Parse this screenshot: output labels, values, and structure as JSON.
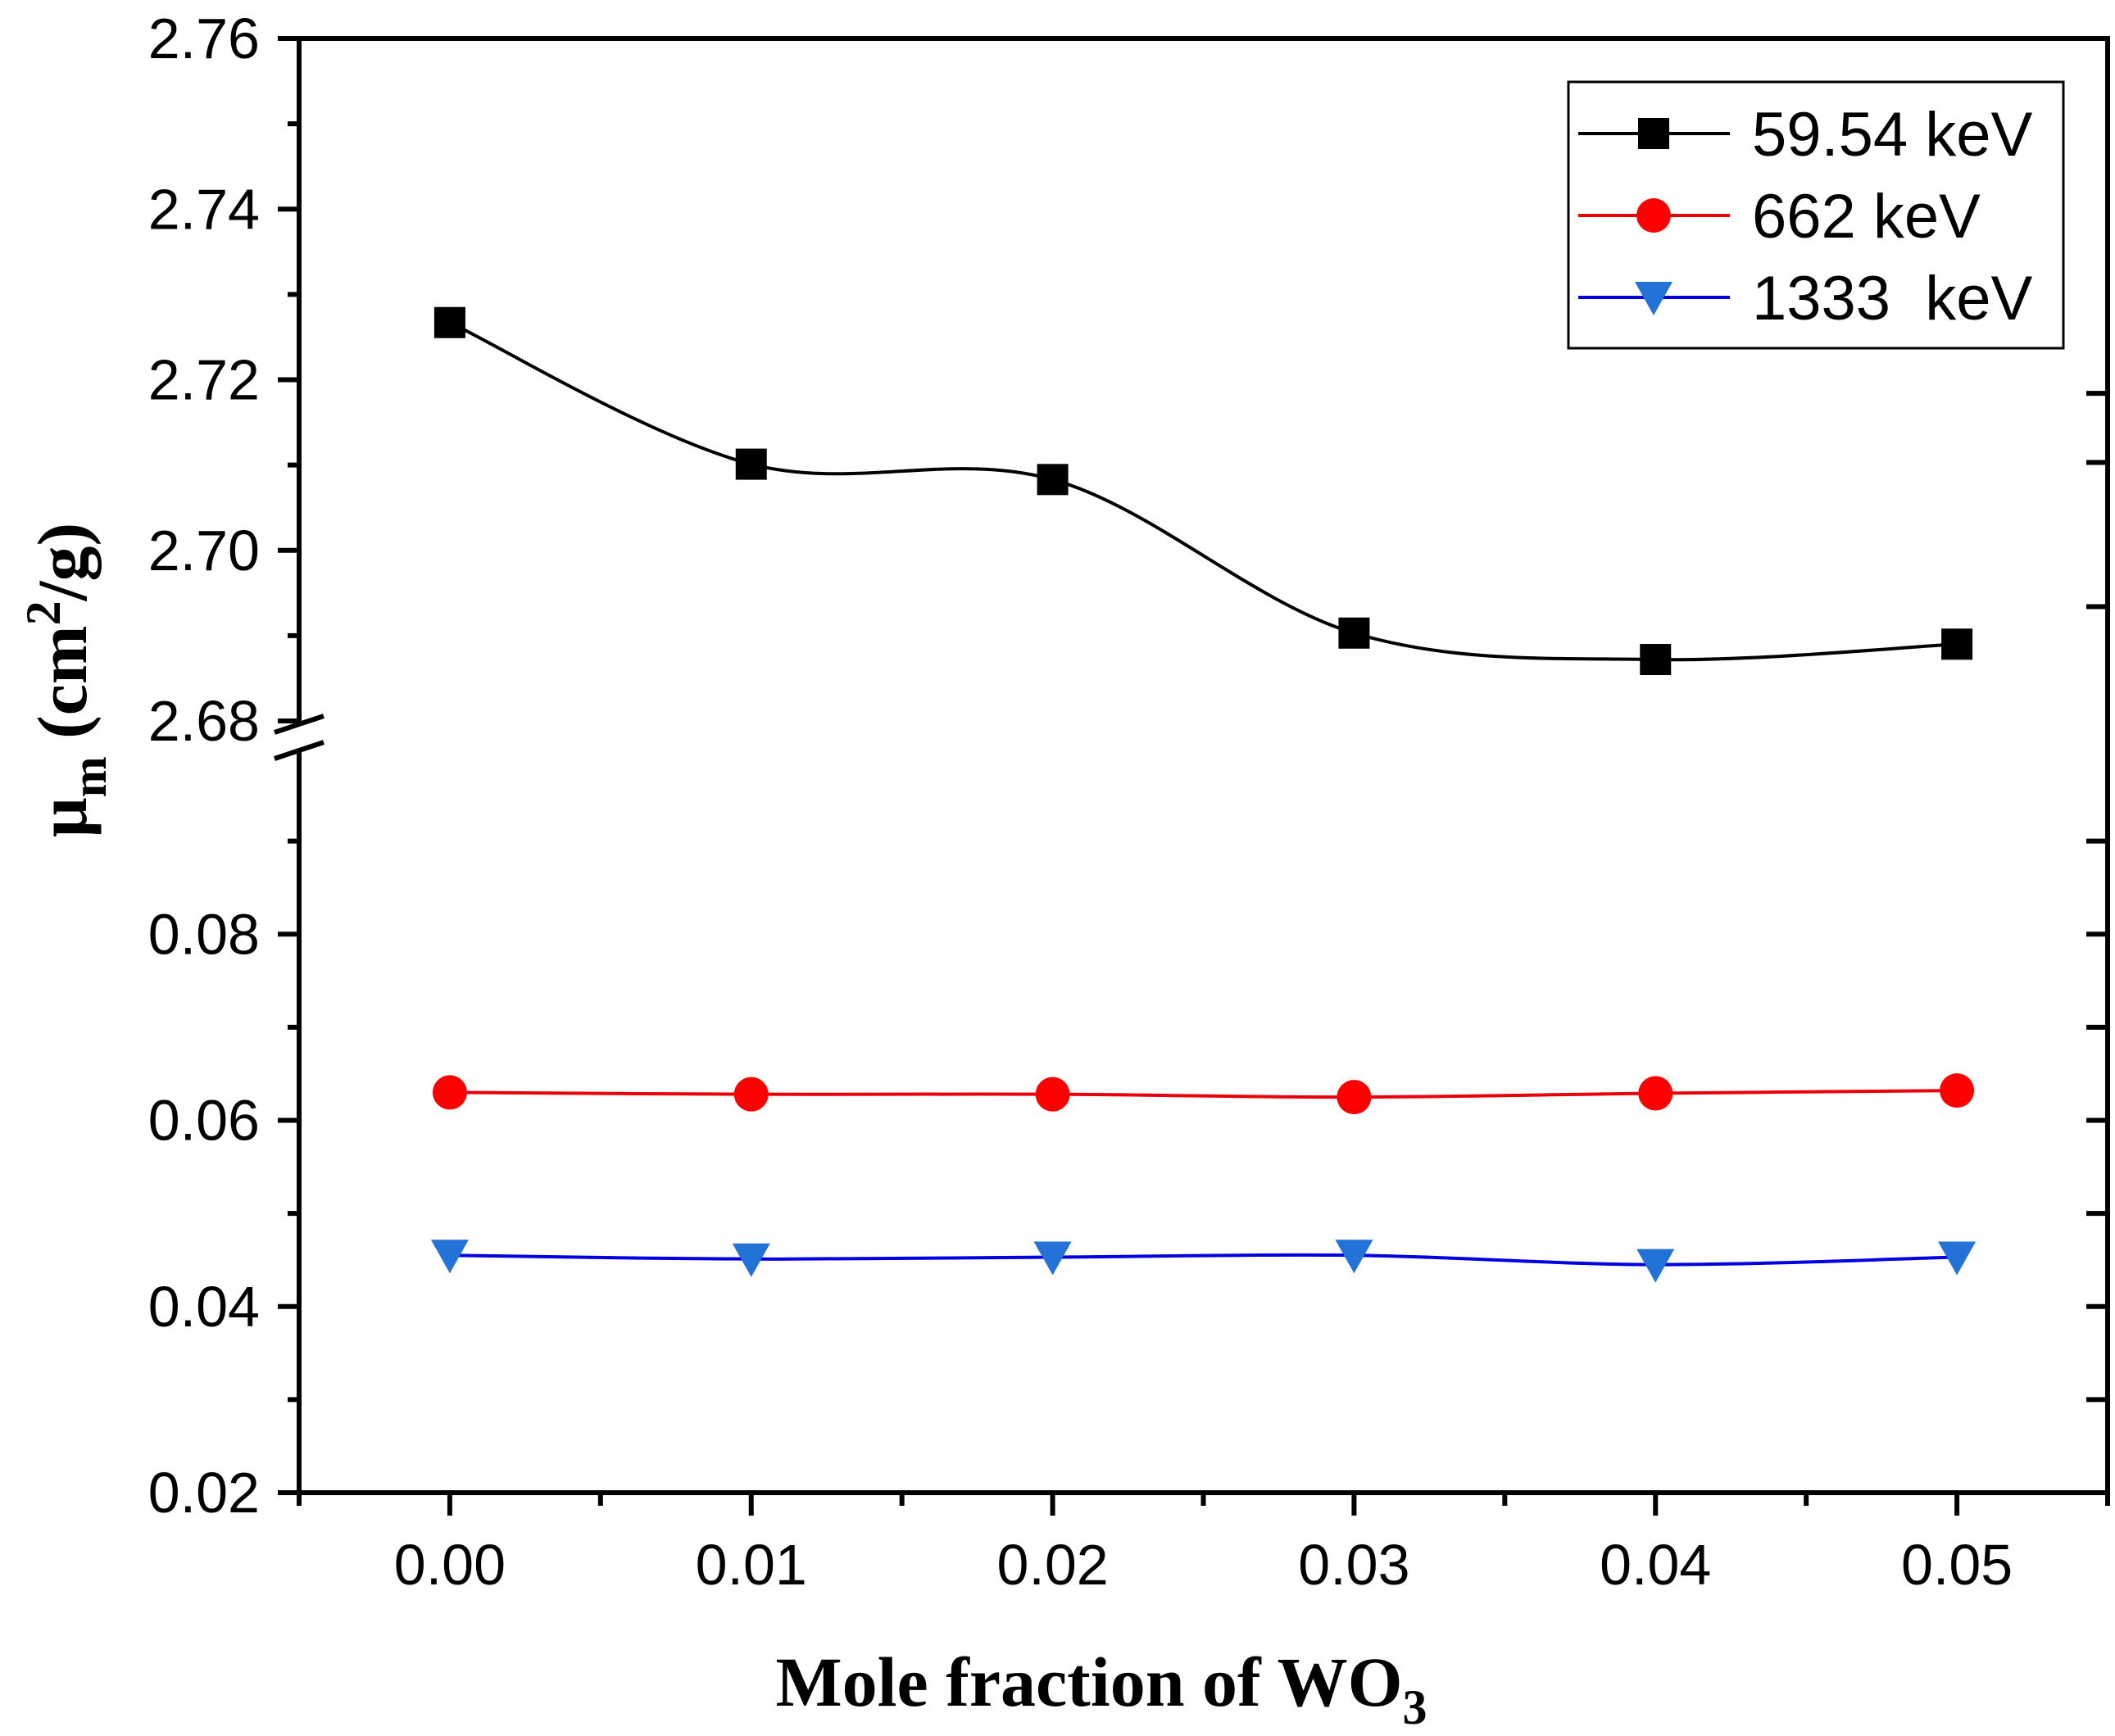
{
  "chart_data": {
    "type": "line",
    "xlabel": "Mole fraction of WO",
    "xlabel_sub": "3",
    "ylabel_mu": "μ",
    "ylabel_mu_sub": "m",
    "ylabel_open": " (cm",
    "ylabel_sup": "2",
    "ylabel_close": "/g)",
    "xlim": [
      -0.005,
      0.055
    ],
    "x_ticks": [
      0.0,
      0.01,
      0.02,
      0.03,
      0.04,
      0.05
    ],
    "x_tick_labels": [
      "0.00",
      "0.01",
      "0.02",
      "0.03",
      "0.04",
      "0.05"
    ],
    "y_axis_break": true,
    "y_upper_segment": {
      "range": [
        2.68,
        2.76
      ],
      "ticks": [
        "2.68",
        "2.70",
        "2.72",
        "2.74",
        "2.76"
      ]
    },
    "y_lower_segment": {
      "range": [
        0.02,
        0.1
      ],
      "ticks": [
        "0.02",
        "0.04",
        "0.06",
        "0.08"
      ]
    },
    "x": [
      0.0,
      0.01,
      0.02,
      0.03,
      0.04,
      0.05
    ],
    "series": [
      {
        "name": "59.54 keV",
        "segment": "upper",
        "marker": "square",
        "color": "#000000",
        "marker_color": "#000000",
        "values": [
          2.7267,
          2.7101,
          2.7083,
          2.6903,
          2.6872,
          2.689
        ]
      },
      {
        "name": "662 keV",
        "segment": "lower",
        "marker": "circle",
        "color": "#e8000b",
        "marker_color": "#ff0000",
        "values": [
          0.063,
          0.0628,
          0.0628,
          0.0625,
          0.0629,
          0.0632
        ]
      },
      {
        "name": "1333  keV",
        "segment": "lower",
        "marker": "triangle-down",
        "color": "#0000e0",
        "marker_color": "#2272d8",
        "values": [
          0.0455,
          0.0451,
          0.0453,
          0.0455,
          0.0445,
          0.0453
        ]
      }
    ],
    "legend_position": "top-right",
    "grid": false
  }
}
